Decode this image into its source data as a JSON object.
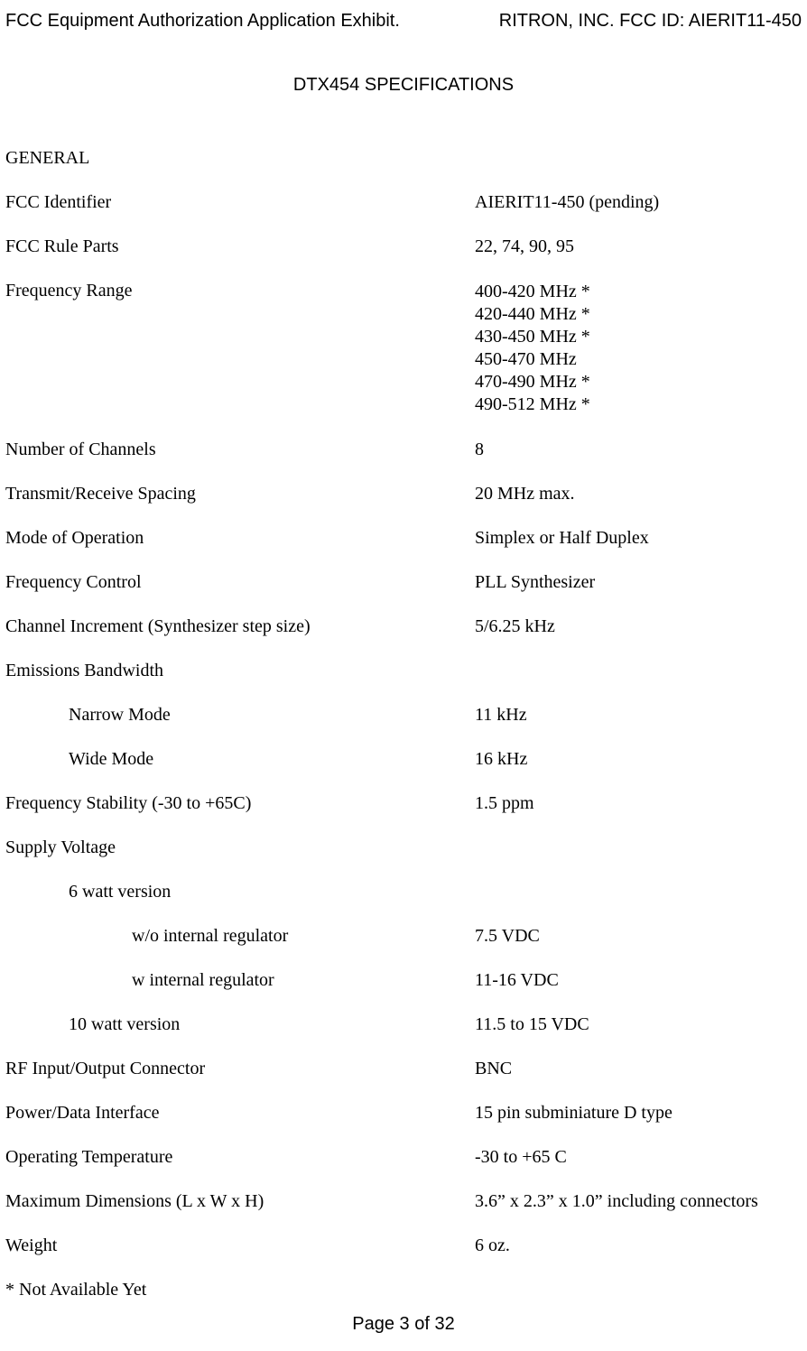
{
  "header": {
    "left": "FCC Equipment Authorization Application Exhibit.",
    "right": "RITRON, INC.  FCC ID:  AIERIT11-450"
  },
  "title": "DTX454 SPECIFICATIONS",
  "section": "GENERAL",
  "rows": {
    "fcc_identifier": {
      "label": "FCC Identifier",
      "value": "AIERIT11-450 (pending)"
    },
    "fcc_rule_parts": {
      "label": "FCC Rule Parts",
      "value": "22, 74, 90, 95"
    },
    "frequency_range": {
      "label": "Frequency Range",
      "values": [
        "400-420 MHz *",
        "420-440 MHz *",
        "430-450 MHz *",
        "450-470 MHz",
        "470-490 MHz *",
        "490-512 MHz *"
      ]
    },
    "channels": {
      "label": "Number of Channels",
      "value": "8"
    },
    "tx_rx_spacing": {
      "label": "Transmit/Receive Spacing",
      "value": "20 MHz max."
    },
    "mode": {
      "label": "Mode of Operation",
      "value": "Simplex or Half Duplex"
    },
    "freq_control": {
      "label": "Frequency Control",
      "value": "PLL Synthesizer"
    },
    "channel_increment": {
      "label": "Channel Increment (Synthesizer step size)",
      "value": "5/6.25 kHz"
    },
    "emissions_bandwidth": {
      "label": "Emissions Bandwidth"
    },
    "narrow_mode": {
      "label": "Narrow Mode",
      "value": "11 kHz"
    },
    "wide_mode": {
      "label": "Wide Mode",
      "value": "16 kHz"
    },
    "freq_stability": {
      "label": "Frequency Stability (-30 to +65C)",
      "value": "1.5 ppm"
    },
    "supply_voltage": {
      "label": "Supply Voltage"
    },
    "six_watt": {
      "label": "6 watt version"
    },
    "without_reg": {
      "label": "w/o internal regulator",
      "value": "7.5 VDC"
    },
    "with_reg": {
      "label": "w internal regulator",
      "value": "11-16 VDC"
    },
    "ten_watt": {
      "label": "10 watt version",
      "value": "11.5 to 15  VDC"
    },
    "rf_connector": {
      "label": "RF Input/Output Connector",
      "value": "BNC"
    },
    "power_data": {
      "label": "Power/Data Interface",
      "value": "15 pin subminiature D type"
    },
    "op_temp": {
      "label": "Operating Temperature",
      "value": "-30 to +65 C"
    },
    "dimensions": {
      "label": "Maximum Dimensions (L x W x H)",
      "value": "3.6” x 2.3” x 1.0” including connectors"
    },
    "weight": {
      "label": "Weight",
      "value": "6 oz."
    }
  },
  "footnote": "* Not Available Yet",
  "footer": "Page 3 of 32"
}
